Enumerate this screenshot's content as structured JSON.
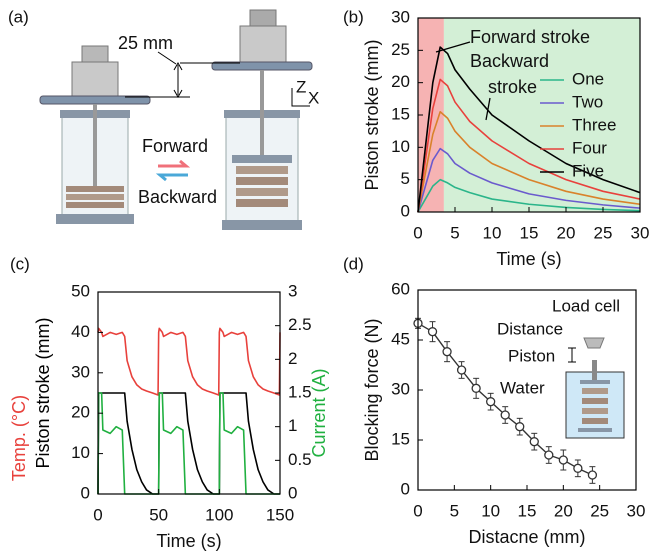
{
  "diagram": {
    "label": "(a)",
    "dimension": "25 mm",
    "forward": "Forward",
    "backward": "Backward",
    "axis_z": "Z",
    "axis_x": "X"
  },
  "chart_data": [
    {
      "type": "line",
      "panel_label": "(b)",
      "xlabel": "Time (s)",
      "ylabel": "Piston stroke (mm)",
      "xlim": [
        0,
        30
      ],
      "ylim": [
        0,
        30
      ],
      "xticks": [
        0,
        5,
        10,
        15,
        20,
        25,
        30
      ],
      "yticks": [
        0,
        5,
        10,
        15,
        20,
        25,
        30
      ],
      "shade": [
        {
          "from": 0,
          "to": 3.5,
          "color": "#f6b3b3"
        },
        {
          "from": 3.5,
          "to": 30,
          "color": "#d3efd6"
        }
      ],
      "annotations": [
        "Forward stroke",
        "Backward",
        "stroke"
      ],
      "legend": "right",
      "x": [
        0,
        1,
        2,
        3,
        4,
        5,
        7,
        10,
        15,
        20,
        25,
        30
      ],
      "series": [
        {
          "name": "One",
          "color": "#2bb58a",
          "values": [
            0,
            2,
            4,
            5,
            4.5,
            3.8,
            3,
            2,
            1.2,
            0.7,
            0.4,
            0.2
          ]
        },
        {
          "name": "Two",
          "color": "#6a5acd",
          "values": [
            0,
            4,
            8,
            9.8,
            9,
            7.5,
            6,
            4.5,
            2.8,
            1.8,
            1.1,
            0.6
          ]
        },
        {
          "name": "Three",
          "color": "#d9822b",
          "values": [
            0,
            6,
            12,
            15.5,
            14.5,
            12.5,
            10,
            7.5,
            5,
            3.2,
            2,
            1.2
          ]
        },
        {
          "name": "Four",
          "color": "#e8413c",
          "values": [
            0,
            8,
            16,
            20.5,
            19.5,
            17,
            14,
            11,
            7.5,
            5,
            3.2,
            2
          ]
        },
        {
          "name": "Five",
          "color": "#000000",
          "values": [
            0,
            10,
            20,
            25.5,
            24.5,
            22,
            19,
            15,
            11,
            7.5,
            5,
            3
          ]
        }
      ]
    },
    {
      "type": "line",
      "panel_label": "(c)",
      "xlabel": "Time (s)",
      "ylabel": [
        "Temp. (°C)",
        "Piston stroke (mm)"
      ],
      "ylabel_colors": [
        "#e8413c",
        "#000000"
      ],
      "y2label": "Current (A)",
      "y2label_color": "#20b040",
      "xlim": [
        0,
        150
      ],
      "ylim": [
        0,
        50
      ],
      "y2lim": [
        0,
        3
      ],
      "xticks": [
        0,
        50,
        100,
        150
      ],
      "yticks": [
        0,
        10,
        20,
        30,
        40,
        50
      ],
      "y2ticks": [
        0,
        0.5,
        1,
        1.5,
        2,
        2.5,
        3
      ],
      "x": [
        0,
        0.5,
        3,
        4,
        10,
        15,
        20,
        22,
        24,
        28,
        32,
        36,
        40,
        45,
        49.5,
        50,
        50.5,
        53,
        54,
        60,
        65,
        70,
        72,
        74,
        78,
        82,
        86,
        90,
        95,
        99.5,
        100,
        100.5,
        103,
        104,
        110,
        115,
        120,
        122,
        124,
        128,
        132,
        136,
        140,
        145,
        149.5,
        150
      ],
      "series": [
        {
          "color": "#e8413c",
          "values": [
            40,
            41,
            40,
            39,
            40,
            39.5,
            40,
            39,
            33,
            29,
            27,
            26,
            25.5,
            25,
            24.5,
            40,
            41,
            40,
            39,
            40,
            39.5,
            40,
            39,
            33,
            29,
            27,
            26,
            25.5,
            25,
            24.5,
            40,
            41,
            40,
            39,
            40,
            39.5,
            40,
            39,
            33,
            29,
            27,
            26,
            25.5,
            25,
            24.5,
            40
          ]
        },
        {
          "color": "#000000",
          "values": [
            0,
            25,
            25,
            25,
            25,
            25,
            25,
            25,
            18,
            11,
            6,
            3,
            1,
            0,
            0,
            0,
            25,
            25,
            25,
            25,
            25,
            25,
            25,
            18,
            11,
            6,
            3,
            1,
            0,
            0,
            0,
            25,
            25,
            25,
            25,
            25,
            25,
            25,
            18,
            11,
            6,
            3,
            1,
            0,
            0,
            0
          ]
        },
        {
          "color": "#20b040",
          "axis": "y2",
          "values": [
            0,
            1.5,
            1.5,
            0.95,
            0.9,
            1,
            0.95,
            0,
            0,
            0,
            0,
            0,
            0,
            0,
            0,
            0,
            1.5,
            1.5,
            0.95,
            0.9,
            1,
            0.95,
            0,
            0,
            0,
            0,
            0,
            0,
            0,
            0,
            0,
            1.5,
            1.5,
            0.95,
            0.9,
            1,
            0.95,
            0,
            0,
            0,
            0,
            0,
            0,
            0,
            0,
            0
          ]
        }
      ]
    },
    {
      "type": "errorbar",
      "panel_label": "(d)",
      "xlabel": "Distacne (mm)",
      "ylabel": "Blocking force (N)",
      "xlim": [
        0,
        30
      ],
      "ylim": [
        0,
        60
      ],
      "xticks": [
        0,
        5,
        10,
        15,
        20,
        25,
        30
      ],
      "yticks": [
        0,
        15,
        30,
        45,
        60
      ],
      "inset_labels": [
        "Load cell",
        "Distance",
        "Piston",
        "Water"
      ],
      "x": [
        0,
        2,
        4,
        6,
        8,
        10,
        12,
        14,
        16,
        18,
        20,
        22,
        24
      ],
      "series": [
        {
          "color": "#333333",
          "values": [
            50,
            47.5,
            41.5,
            36,
            30.5,
            26.5,
            22.5,
            19,
            14.5,
            10.5,
            9,
            6.5,
            4.5
          ],
          "errors": [
            1.5,
            3,
            3,
            2.5,
            3,
            2.5,
            2.5,
            2.5,
            2.5,
            2.5,
            3,
            2.5,
            2.5
          ]
        }
      ]
    }
  ]
}
